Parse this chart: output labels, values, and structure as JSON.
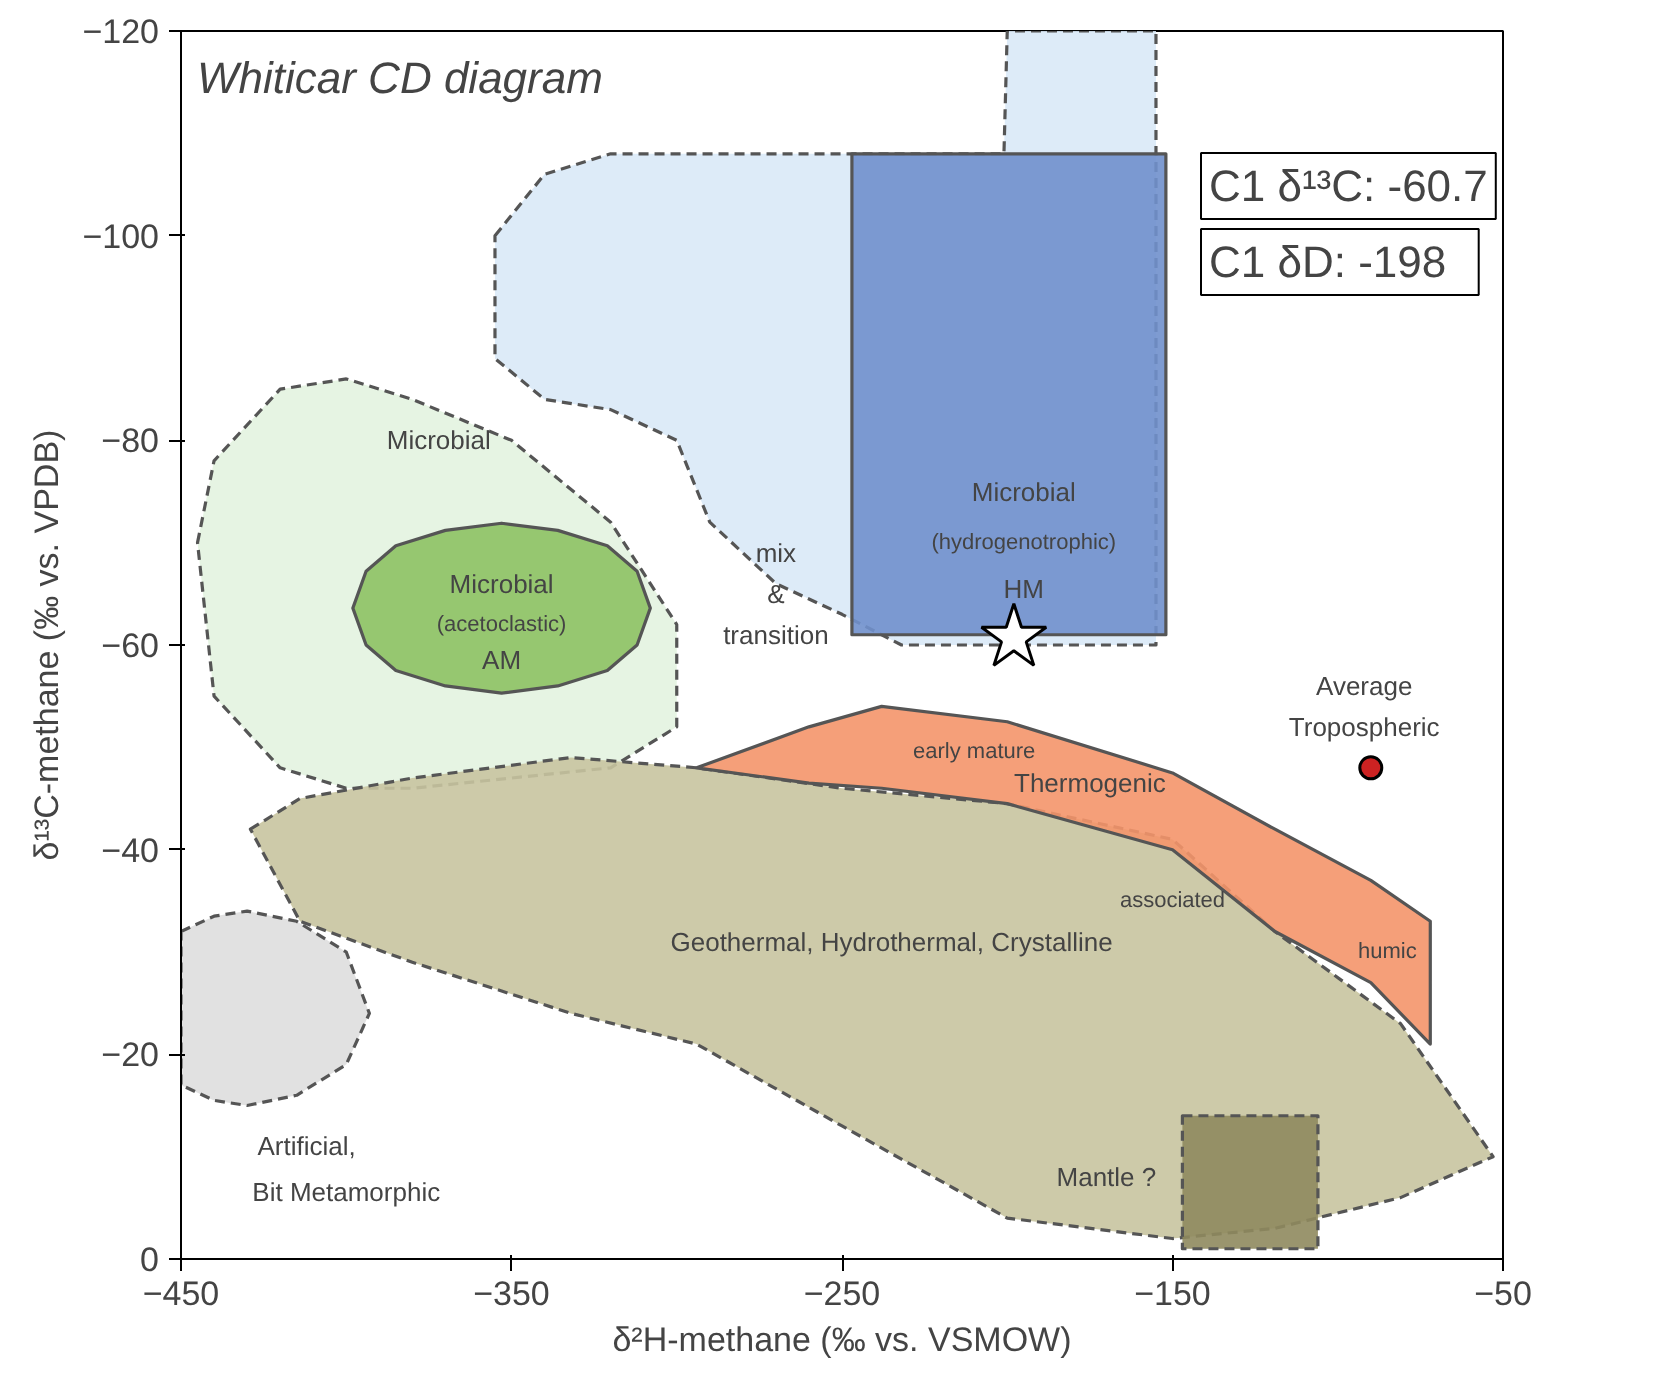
{
  "chart_data": {
    "type": "scatter",
    "title": "Whiticar CD diagram",
    "xlabel": "δ²H-methane (‰ vs. VSMOW)",
    "ylabel": "δ¹³C-methane (‰ vs. VPDB)",
    "xlim": [
      -450,
      -50
    ],
    "xticks": [
      -450,
      -350,
      -250,
      -150,
      -50
    ],
    "ylim": [
      0,
      -120
    ],
    "yticks": [
      0,
      -20,
      -40,
      -60,
      -80,
      -100,
      -120
    ],
    "grid": false,
    "series": [
      {
        "type": "area",
        "color": "#d9e9f7",
        "line_style": "dashed",
        "x": [
          -355,
          -340,
          -320,
          -300,
          -290,
          -270,
          -250,
          -232,
          -201,
          -200,
          -155,
          -155,
          -232,
          -250,
          -270,
          -290,
          -300,
          -320,
          -340,
          -355
        ],
        "values": [
          -100,
          -106,
          -108,
          -108,
          -108,
          -108,
          -108,
          -108,
          -108,
          -120,
          -120,
          -60,
          -60,
          -63,
          -66,
          -72,
          -80,
          -83,
          -84,
          -88
        ]
      },
      {
        "type": "area",
        "color": "#e3f3e0",
        "line_style": "dashed",
        "x": [
          -445,
          -440,
          -420,
          -400,
          -380,
          -350,
          -320,
          -300,
          -300,
          -320,
          -350,
          -380,
          -400,
          -420,
          -440
        ],
        "values": [
          -70,
          -78,
          -85,
          -86,
          -84,
          -80,
          -72,
          -62,
          -52,
          -48,
          -47,
          -46,
          -46,
          -48,
          -55
        ]
      },
      {
        "type": "area",
        "color": "#7090cc",
        "line_style": "solid",
        "x": [
          -247,
          -152,
          -152,
          -247
        ],
        "values": [
          -108,
          -108,
          -61,
          -61
        ]
      },
      {
        "type": "area",
        "color": "#8dc263",
        "line_style": "solid",
        "x": [
          -398,
          -394,
          -385,
          -370,
          -353,
          -336,
          -321,
          -312,
          -308,
          -312,
          -321,
          -336,
          -353,
          -370,
          -385,
          -394
        ],
        "values": [
          -63.6,
          -67.2,
          -69.7,
          -71.2,
          -71.9,
          -71.2,
          -69.7,
          -67.2,
          -63.6,
          -60,
          -57.5,
          -56,
          -55.3,
          -56,
          -57.5,
          -60
        ]
      },
      {
        "type": "area",
        "color": "#c8c4a0",
        "line_style": "dashed",
        "x": [
          -429,
          -414,
          -380,
          -332,
          -294,
          -250,
          -200,
          -150,
          -119,
          -81,
          -53,
          -81,
          -119,
          -150,
          -200,
          -250,
          -294,
          -332,
          -380,
          -414
        ],
        "values": [
          -42,
          -45,
          -47,
          -49,
          -48,
          -46,
          -44.5,
          -41,
          -32,
          -23,
          -10,
          -6,
          -3,
          -2,
          -4,
          -13,
          -21,
          -24,
          -29,
          -33
        ]
      },
      {
        "type": "area",
        "color": "#f4956a",
        "line_style": "solid",
        "x": [
          -294,
          -260,
          -238,
          -200,
          -150,
          -119,
          -90,
          -72,
          -72,
          -90,
          -119,
          -150,
          -200,
          -238,
          -260
        ],
        "values": [
          -48,
          -52,
          -54,
          -52.5,
          -47.5,
          -42,
          -37,
          -33,
          -21,
          -27,
          -32,
          -40,
          -44.5,
          -46,
          -46.5
        ]
      },
      {
        "type": "area",
        "color": "#8f8a5e",
        "line_style": "dashed",
        "x": [
          -147,
          -106,
          -106,
          -147
        ],
        "values": [
          -14,
          -14,
          -1,
          -1
        ]
      },
      {
        "type": "area",
        "color": "#dedede",
        "line_style": "dashed",
        "x": [
          -450,
          -440,
          -430,
          -415,
          -400,
          -393,
          -400,
          -415,
          -430,
          -440,
          -450
        ],
        "values": [
          -32,
          -33.5,
          -34,
          -33,
          -30,
          -24,
          -19,
          -16,
          -15,
          -15.5,
          -17
        ]
      },
      {
        "marker": "star",
        "color": "#ffffff",
        "x": [
          -198
        ],
        "values": [
          -60.7
        ]
      },
      {
        "marker": "circle",
        "color": "#cc2222",
        "x": [
          -90
        ],
        "values": [
          -48
        ]
      }
    ],
    "annotations": [
      "Microbial",
      "Microbial",
      "(hydrogenotrophic)",
      "HM",
      "mix",
      "&",
      "transition",
      "Microbial",
      "(acetoclastic)",
      "AM",
      "early mature",
      "Thermogenic",
      "associated",
      "humic",
      "Geothermal, Hydrothermal, Crystalline",
      "Mantle ?",
      "Artificial,",
      "Bit Metamorphic",
      "Average",
      "Tropospheric",
      "C1 δ¹³C: -60.7",
      "C1 δD:   -198"
    ]
  }
}
